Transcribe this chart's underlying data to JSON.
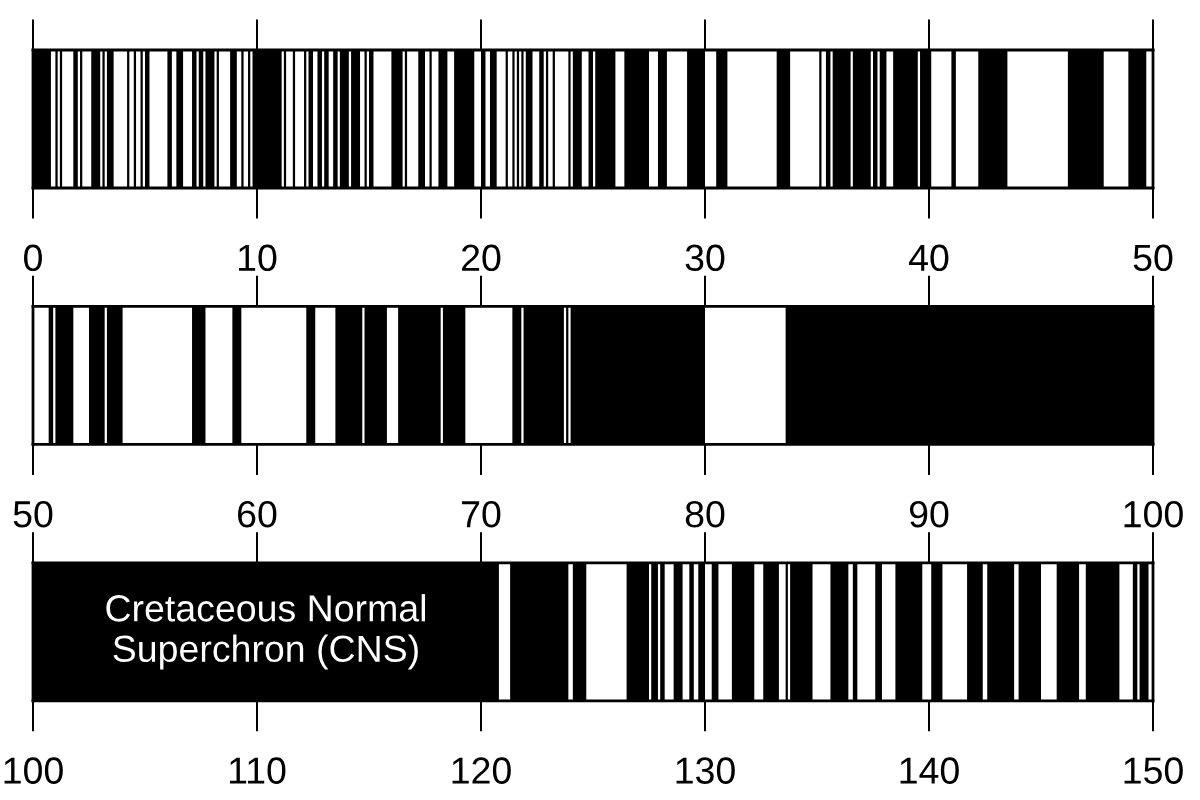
{
  "chart_data": [
    {
      "type": "bar",
      "orientation": "horizontal",
      "categories": [
        null
      ],
      "xlim": [
        0,
        50
      ],
      "xticks": [
        0,
        10,
        20,
        30,
        40,
        50
      ],
      "series": [
        {
          "color": "#000000",
          "base": [
            0
          ],
          "values": [
            0.8
          ]
        },
        {
          "color": "#000000",
          "base": [
            1.0
          ],
          "values": [
            0.1
          ]
        },
        {
          "color": "#000000",
          "base": [
            1.2
          ],
          "values": [
            0.1
          ]
        },
        {
          "color": "#000000",
          "base": [
            1.8
          ],
          "values": [
            0.2
          ]
        },
        {
          "color": "#000000",
          "base": [
            2.1
          ],
          "values": [
            0.1
          ]
        },
        {
          "color": "#000000",
          "base": [
            2.6
          ],
          "values": [
            0.4
          ]
        },
        {
          "color": "#000000",
          "base": [
            3.1
          ],
          "values": [
            0.1
          ]
        },
        {
          "color": "#000000",
          "base": [
            3.3
          ],
          "values": [
            0.3
          ]
        },
        {
          "color": "#000000",
          "base": [
            4.2
          ],
          "values": [
            0.1
          ]
        },
        {
          "color": "#000000",
          "base": [
            4.5
          ],
          "values": [
            0.1
          ]
        },
        {
          "color": "#000000",
          "base": [
            4.8
          ],
          "values": [
            0.1
          ]
        },
        {
          "color": "#000000",
          "base": [
            5.0
          ],
          "values": [
            0.2
          ]
        },
        {
          "color": "#000000",
          "base": [
            6.0
          ],
          "values": [
            0.2
          ]
        },
        {
          "color": "#000000",
          "base": [
            6.4
          ],
          "values": [
            0.3
          ]
        },
        {
          "color": "#000000",
          "base": [
            7.1
          ],
          "values": [
            0.2
          ]
        },
        {
          "color": "#000000",
          "base": [
            7.4
          ],
          "values": [
            0.2
          ]
        },
        {
          "color": "#000000",
          "base": [
            7.7
          ],
          "values": [
            0.4
          ]
        },
        {
          "color": "#000000",
          "base": [
            8.2
          ],
          "values": [
            0.1
          ]
        },
        {
          "color": "#000000",
          "base": [
            8.8
          ],
          "values": [
            0.3
          ]
        },
        {
          "color": "#000000",
          "base": [
            9.3
          ],
          "values": [
            0.1
          ]
        },
        {
          "color": "#000000",
          "base": [
            9.6
          ],
          "values": [
            0.1
          ]
        },
        {
          "color": "#000000",
          "base": [
            9.8
          ],
          "values": [
            1.3
          ]
        },
        {
          "color": "#000000",
          "base": [
            11.2
          ],
          "values": [
            0.1
          ]
        },
        {
          "color": "#000000",
          "base": [
            11.6
          ],
          "values": [
            0.1
          ]
        },
        {
          "color": "#000000",
          "base": [
            12.1
          ],
          "values": [
            0.1
          ]
        },
        {
          "color": "#000000",
          "base": [
            12.3
          ],
          "values": [
            0.2
          ]
        },
        {
          "color": "#000000",
          "base": [
            12.7
          ],
          "values": [
            0.2
          ]
        },
        {
          "color": "#000000",
          "base": [
            13.0
          ],
          "values": [
            0.2
          ]
        },
        {
          "color": "#000000",
          "base": [
            13.4
          ],
          "values": [
            0.2
          ]
        },
        {
          "color": "#000000",
          "base": [
            13.7
          ],
          "values": [
            0.4
          ]
        },
        {
          "color": "#000000",
          "base": [
            14.2
          ],
          "values": [
            0.4
          ]
        },
        {
          "color": "#000000",
          "base": [
            14.8
          ],
          "values": [
            0.1
          ]
        },
        {
          "color": "#000000",
          "base": [
            15.0
          ],
          "values": [
            0.2
          ]
        },
        {
          "color": "#000000",
          "base": [
            16.0
          ],
          "values": [
            0.5
          ]
        },
        {
          "color": "#000000",
          "base": [
            16.6
          ],
          "values": [
            0.1
          ]
        },
        {
          "color": "#000000",
          "base": [
            17.2
          ],
          "values": [
            0.3
          ]
        },
        {
          "color": "#000000",
          "base": [
            17.7
          ],
          "values": [
            0.1
          ]
        },
        {
          "color": "#000000",
          "base": [
            18.1
          ],
          "values": [
            0.4
          ]
        },
        {
          "color": "#000000",
          "base": [
            18.8
          ],
          "values": [
            0.9
          ]
        },
        {
          "color": "#000000",
          "base": [
            20.0
          ],
          "values": [
            0.2
          ]
        },
        {
          "color": "#000000",
          "base": [
            20.4
          ],
          "values": [
            0.3
          ]
        },
        {
          "color": "#000000",
          "base": [
            21.1
          ],
          "values": [
            0.1
          ]
        },
        {
          "color": "#000000",
          "base": [
            21.4
          ],
          "values": [
            0.1
          ]
        },
        {
          "color": "#000000",
          "base": [
            21.6
          ],
          "values": [
            0.1
          ]
        },
        {
          "color": "#000000",
          "base": [
            21.8
          ],
          "values": [
            0.1
          ]
        },
        {
          "color": "#000000",
          "base": [
            22.0
          ],
          "values": [
            0.3
          ]
        },
        {
          "color": "#000000",
          "base": [
            22.6
          ],
          "values": [
            0.2
          ]
        },
        {
          "color": "#000000",
          "base": [
            22.9
          ],
          "values": [
            0.1
          ]
        },
        {
          "color": "#000000",
          "base": [
            23.2
          ],
          "values": [
            0.1
          ]
        },
        {
          "color": "#000000",
          "base": [
            23.9
          ],
          "values": [
            0.1
          ]
        },
        {
          "color": "#000000",
          "base": [
            24.1
          ],
          "values": [
            0.4
          ]
        },
        {
          "color": "#000000",
          "base": [
            24.8
          ],
          "values": [
            0.2
          ]
        },
        {
          "color": "#000000",
          "base": [
            25.1
          ],
          "values": [
            0.9
          ]
        },
        {
          "color": "#000000",
          "base": [
            26.4
          ],
          "values": [
            1.1
          ]
        },
        {
          "color": "#000000",
          "base": [
            27.9
          ],
          "values": [
            0.4
          ]
        },
        {
          "color": "#000000",
          "base": [
            29.2
          ],
          "values": [
            0.8
          ]
        },
        {
          "color": "#000000",
          "base": [
            30.5
          ],
          "values": [
            0.5
          ]
        },
        {
          "color": "#000000",
          "base": [
            33.2
          ],
          "values": [
            0.6
          ]
        },
        {
          "color": "#000000",
          "base": [
            35.1
          ],
          "values": [
            0.1
          ]
        },
        {
          "color": "#000000",
          "base": [
            35.4
          ],
          "values": [
            0.2
          ]
        },
        {
          "color": "#000000",
          "base": [
            35.7
          ],
          "values": [
            0.8
          ]
        },
        {
          "color": "#000000",
          "base": [
            36.6
          ],
          "values": [
            0.8
          ]
        },
        {
          "color": "#000000",
          "base": [
            37.5
          ],
          "values": [
            0.2
          ]
        },
        {
          "color": "#000000",
          "base": [
            37.8
          ],
          "values": [
            0.3
          ]
        },
        {
          "color": "#000000",
          "base": [
            38.4
          ],
          "values": [
            1.1
          ]
        },
        {
          "color": "#000000",
          "base": [
            39.6
          ],
          "values": [
            0.5
          ]
        },
        {
          "color": "#000000",
          "base": [
            41.0
          ],
          "values": [
            0.2
          ]
        },
        {
          "color": "#000000",
          "base": [
            42.2
          ],
          "values": [
            1.3
          ]
        },
        {
          "color": "#000000",
          "base": [
            46.2
          ],
          "values": [
            1.6
          ]
        },
        {
          "color": "#000000",
          "base": [
            48.9
          ],
          "values": [
            0.8
          ]
        }
      ]
    },
    {
      "type": "bar",
      "orientation": "horizontal",
      "categories": [
        null
      ],
      "xlim": [
        50,
        100
      ],
      "xticks": [
        50,
        60,
        70,
        80,
        90,
        100
      ],
      "series": [
        {
          "color": "#000000",
          "base": [
            50.7
          ],
          "values": [
            0.2
          ]
        },
        {
          "color": "#000000",
          "base": [
            51.0
          ],
          "values": [
            0.8
          ]
        },
        {
          "color": "#000000",
          "base": [
            52.5
          ],
          "values": [
            0.7
          ]
        },
        {
          "color": "#000000",
          "base": [
            53.3
          ],
          "values": [
            0.7
          ]
        },
        {
          "color": "#000000",
          "base": [
            57.1
          ],
          "values": [
            0.6
          ]
        },
        {
          "color": "#000000",
          "base": [
            58.9
          ],
          "values": [
            0.4
          ]
        },
        {
          "color": "#000000",
          "base": [
            62.2
          ],
          "values": [
            0.4
          ]
        },
        {
          "color": "#000000",
          "base": [
            63.5
          ],
          "values": [
            1.2
          ]
        },
        {
          "color": "#000000",
          "base": [
            64.8
          ],
          "values": [
            1.0
          ]
        },
        {
          "color": "#000000",
          "base": [
            66.3
          ],
          "values": [
            1.9
          ]
        },
        {
          "color": "#000000",
          "base": [
            68.3
          ],
          "values": [
            1.0
          ]
        },
        {
          "color": "#000000",
          "base": [
            71.4
          ],
          "values": [
            0.4
          ]
        },
        {
          "color": "#000000",
          "base": [
            71.9
          ],
          "values": [
            1.8
          ]
        },
        {
          "color": "#000000",
          "base": [
            73.8
          ],
          "values": [
            0.1
          ]
        },
        {
          "color": "#000000",
          "base": [
            74.0
          ],
          "values": [
            6.0
          ]
        },
        {
          "color": "#000000",
          "base": [
            83.6
          ],
          "values": [
            16.4
          ]
        }
      ]
    },
    {
      "type": "bar",
      "orientation": "horizontal",
      "categories": [
        null
      ],
      "xlim": [
        100,
        150
      ],
      "xticks": [
        100,
        110,
        120,
        130,
        140,
        150
      ],
      "annotations": [
        "Cretaceous Normal\nSuperchron (CNS)"
      ],
      "series": [
        {
          "color": "#000000",
          "base": [
            100
          ],
          "values": [
            20.8
          ]
        },
        {
          "color": "#000000",
          "base": [
            121.3
          ],
          "values": [
            2.6
          ]
        },
        {
          "color": "#000000",
          "base": [
            124.1
          ],
          "values": [
            0.6
          ]
        },
        {
          "color": "#000000",
          "base": [
            126.5
          ],
          "values": [
            1.0
          ]
        },
        {
          "color": "#000000",
          "base": [
            127.6
          ],
          "values": [
            0.3
          ]
        },
        {
          "color": "#000000",
          "base": [
            128.0
          ],
          "values": [
            0.2
          ]
        },
        {
          "color": "#000000",
          "base": [
            128.6
          ],
          "values": [
            0.4
          ]
        },
        {
          "color": "#000000",
          "base": [
            129.3
          ],
          "values": [
            0.2
          ]
        },
        {
          "color": "#000000",
          "base": [
            129.7
          ],
          "values": [
            0.3
          ]
        },
        {
          "color": "#000000",
          "base": [
            130.3
          ],
          "values": [
            0.3
          ]
        },
        {
          "color": "#000000",
          "base": [
            131.2
          ],
          "values": [
            1.0
          ]
        },
        {
          "color": "#000000",
          "base": [
            132.6
          ],
          "values": [
            0.7
          ]
        },
        {
          "color": "#000000",
          "base": [
            133.6
          ],
          "values": [
            0.1
          ]
        },
        {
          "color": "#000000",
          "base": [
            133.8
          ],
          "values": [
            1.0
          ]
        },
        {
          "color": "#000000",
          "base": [
            135.6
          ],
          "values": [
            0.8
          ]
        },
        {
          "color": "#000000",
          "base": [
            136.6
          ],
          "values": [
            0.2
          ]
        },
        {
          "color": "#000000",
          "base": [
            137.6
          ],
          "values": [
            0.3
          ]
        },
        {
          "color": "#000000",
          "base": [
            138.5
          ],
          "values": [
            1.2
          ]
        },
        {
          "color": "#000000",
          "base": [
            140.1
          ],
          "values": [
            0.5
          ]
        },
        {
          "color": "#000000",
          "base": [
            141.7
          ],
          "values": [
            0.7
          ]
        },
        {
          "color": "#000000",
          "base": [
            142.6
          ],
          "values": [
            1.2
          ]
        },
        {
          "color": "#000000",
          "base": [
            144.0
          ],
          "values": [
            1.0
          ]
        },
        {
          "color": "#000000",
          "base": [
            145.7
          ],
          "values": [
            1.0
          ]
        },
        {
          "color": "#000000",
          "base": [
            147.0
          ],
          "values": [
            1.5
          ]
        },
        {
          "color": "#000000",
          "base": [
            149.1
          ],
          "values": [
            0.2
          ]
        },
        {
          "color": "#000000",
          "base": [
            149.4
          ],
          "values": [
            0.4
          ]
        }
      ]
    }
  ]
}
